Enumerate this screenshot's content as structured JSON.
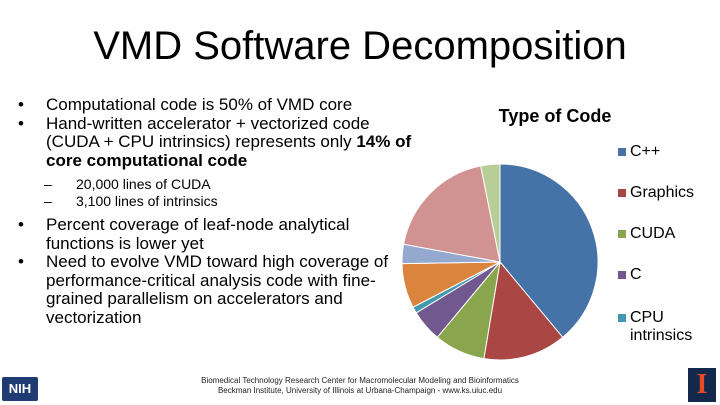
{
  "slide": {
    "title": "VMD Software Decomposition",
    "bullets": [
      {
        "lines": [
          "Computational code is 50% of VMD core"
        ]
      },
      {
        "pre": "Hand-written accelerator + vectorized code (CUDA + CPU intrinsics) represents only ",
        "bold": "14% of core computational code"
      },
      {
        "sub": [
          "20,000 lines of CUDA",
          "3,100 lines of intrinsics"
        ]
      },
      {
        "lines": [
          "Percent coverage of leaf-node analytical functions is lower yet"
        ]
      },
      {
        "lines": [
          "Need to evolve VMD toward high coverage of performance-critical analysis code with fine-grained parallelism on accelerators and vectorization"
        ]
      }
    ],
    "bullet_glyph": "•",
    "dash_glyph": "–",
    "footer_line1": "Biomedical Technology Research Center for Macromolecular Modeling and Bioinformatics",
    "footer_line2": "Beckman Institute, University of Illinois at Urbana-Champaign - www.ks.uiuc.edu",
    "logo_left_text": "NIH",
    "logo_right_text": "I",
    "logo_left_icon": "nih-logo",
    "logo_right_icon": "illinois-logo"
  },
  "chart_data": {
    "type": "pie",
    "title": "Type of Code",
    "legend_position": "right",
    "slices": [
      {
        "label": "C++",
        "value": 37,
        "color": "#4572a7"
      },
      {
        "label": "Graphics",
        "value": 13,
        "color": "#aa4643"
      },
      {
        "label": "CUDA",
        "value": 8,
        "color": "#89a54e"
      },
      {
        "label": "C",
        "value": 5,
        "color": "#71588f"
      },
      {
        "label": "CPU intrinsics",
        "value": 1,
        "color": "#4198af"
      },
      {
        "label": "",
        "value": 7,
        "color": "#db843d"
      },
      {
        "label": "",
        "value": 3,
        "color": "#93a9cf"
      },
      {
        "label": "",
        "value": 18,
        "color": "#d19392"
      },
      {
        "label": "",
        "value": 3,
        "color": "#b9cd96"
      }
    ],
    "legend_entries": [
      "C++",
      "Graphics",
      "CUDA",
      "C",
      "CPU intrinsics"
    ]
  }
}
